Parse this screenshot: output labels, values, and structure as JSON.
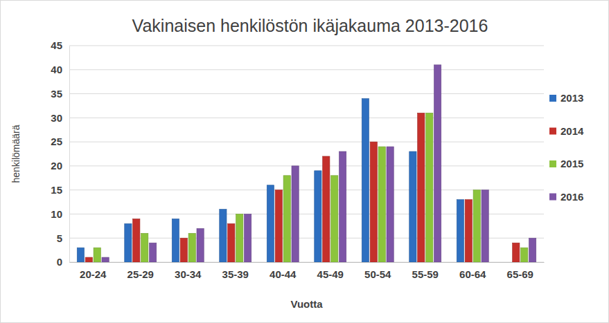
{
  "chart_data": {
    "type": "bar",
    "title": "Vakinaisen henkilöstön ikäjakauma 2013-2016",
    "xlabel": "Vuotta",
    "ylabel": "henkilömäärä",
    "categories": [
      "20-24",
      "25-29",
      "30-34",
      "35-39",
      "40-44",
      "45-49",
      "50-54",
      "55-59",
      "60-64",
      "65-69"
    ],
    "series": [
      {
        "name": "2013",
        "color": "#2e6fc0",
        "values": [
          3,
          8,
          9,
          11,
          16,
          19,
          34,
          23,
          13,
          null
        ]
      },
      {
        "name": "2014",
        "color": "#c4302b",
        "values": [
          1,
          9,
          5,
          8,
          15,
          22,
          25,
          31,
          13,
          4
        ]
      },
      {
        "name": "2015",
        "color": "#8cc43c",
        "values": [
          3,
          6,
          6,
          10,
          18,
          18,
          24,
          31,
          15,
          3
        ]
      },
      {
        "name": "2016",
        "color": "#7d55a6",
        "values": [
          1,
          4,
          7,
          10,
          20,
          23,
          24,
          41,
          15,
          5
        ]
      }
    ],
    "ylim": [
      0,
      45
    ],
    "yticks": [
      0,
      5,
      10,
      15,
      20,
      25,
      30,
      35,
      40,
      45
    ],
    "grid": true,
    "legend": "right"
  }
}
